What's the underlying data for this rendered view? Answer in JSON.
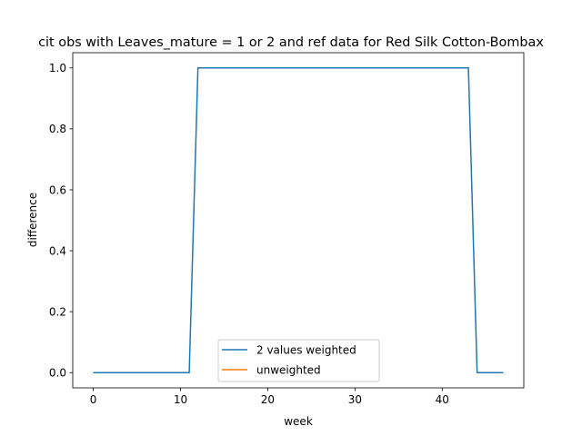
{
  "chart_data": {
    "type": "line",
    "title": "cit obs with Leaves_mature = 1 or 2 and ref data for Red Silk Cotton-Bombax",
    "xlabel": "week",
    "ylabel": "difference",
    "xlim": [
      -2.35,
      49.35
    ],
    "ylim": [
      -0.05,
      1.05
    ],
    "xticks": [
      0,
      10,
      20,
      30,
      40
    ],
    "yticks": [
      0.0,
      0.2,
      0.4,
      0.6,
      0.8,
      1.0
    ],
    "xtick_labels": [
      "0",
      "10",
      "20",
      "30",
      "40"
    ],
    "ytick_labels": [
      "0.0",
      "0.2",
      "0.4",
      "0.6",
      "0.8",
      "1.0"
    ],
    "legend_position": "bottom-center",
    "grid": false,
    "series": [
      {
        "name": "2 values weighted",
        "color": "#1f77b4",
        "x": [
          0,
          1,
          2,
          3,
          4,
          5,
          6,
          7,
          8,
          9,
          10,
          11,
          12,
          13,
          14,
          15,
          16,
          17,
          18,
          19,
          20,
          21,
          22,
          23,
          24,
          25,
          26,
          27,
          28,
          29,
          30,
          31,
          32,
          33,
          34,
          35,
          36,
          37,
          38,
          39,
          40,
          41,
          42,
          43,
          44,
          45,
          46,
          47
        ],
        "y": [
          0,
          0,
          0,
          0,
          0,
          0,
          0,
          0,
          0,
          0,
          0,
          0,
          1,
          1,
          1,
          1,
          1,
          1,
          1,
          1,
          1,
          1,
          1,
          1,
          1,
          1,
          1,
          1,
          1,
          1,
          1,
          1,
          1,
          1,
          1,
          1,
          1,
          1,
          1,
          1,
          1,
          1,
          1,
          1,
          0,
          0,
          0,
          0
        ]
      },
      {
        "name": "unweighted",
        "color": "#ff7f0e",
        "x": [],
        "y": []
      }
    ]
  }
}
